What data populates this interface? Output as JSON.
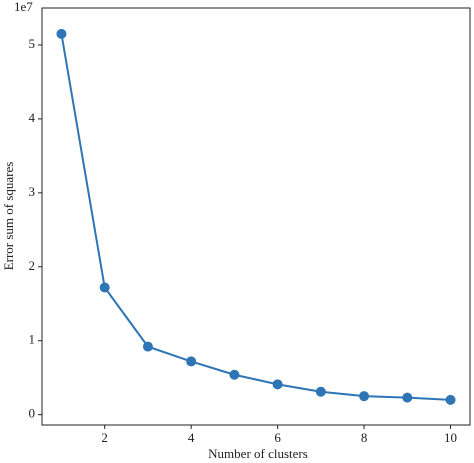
{
  "chart_data": {
    "type": "line",
    "x_label": "Number of clusters",
    "y_label": "Error sum of squares",
    "offset_label": "1e7",
    "x": [
      1,
      2,
      3,
      4,
      5,
      6,
      7,
      8,
      9,
      10
    ],
    "series": [
      {
        "color": "#2e75b6",
        "values": [
          5.15,
          1.72,
          0.92,
          0.72,
          0.54,
          0.41,
          0.31,
          0.25,
          0.23,
          0.2
        ]
      }
    ],
    "xlim": [
      0.55,
      10.45
    ],
    "xticks": [
      2,
      4,
      6,
      8,
      10
    ],
    "ylim": [
      -0.14,
      5.5
    ],
    "yticks": [
      0,
      1,
      2,
      3,
      4,
      5
    ],
    "grid": false
  }
}
